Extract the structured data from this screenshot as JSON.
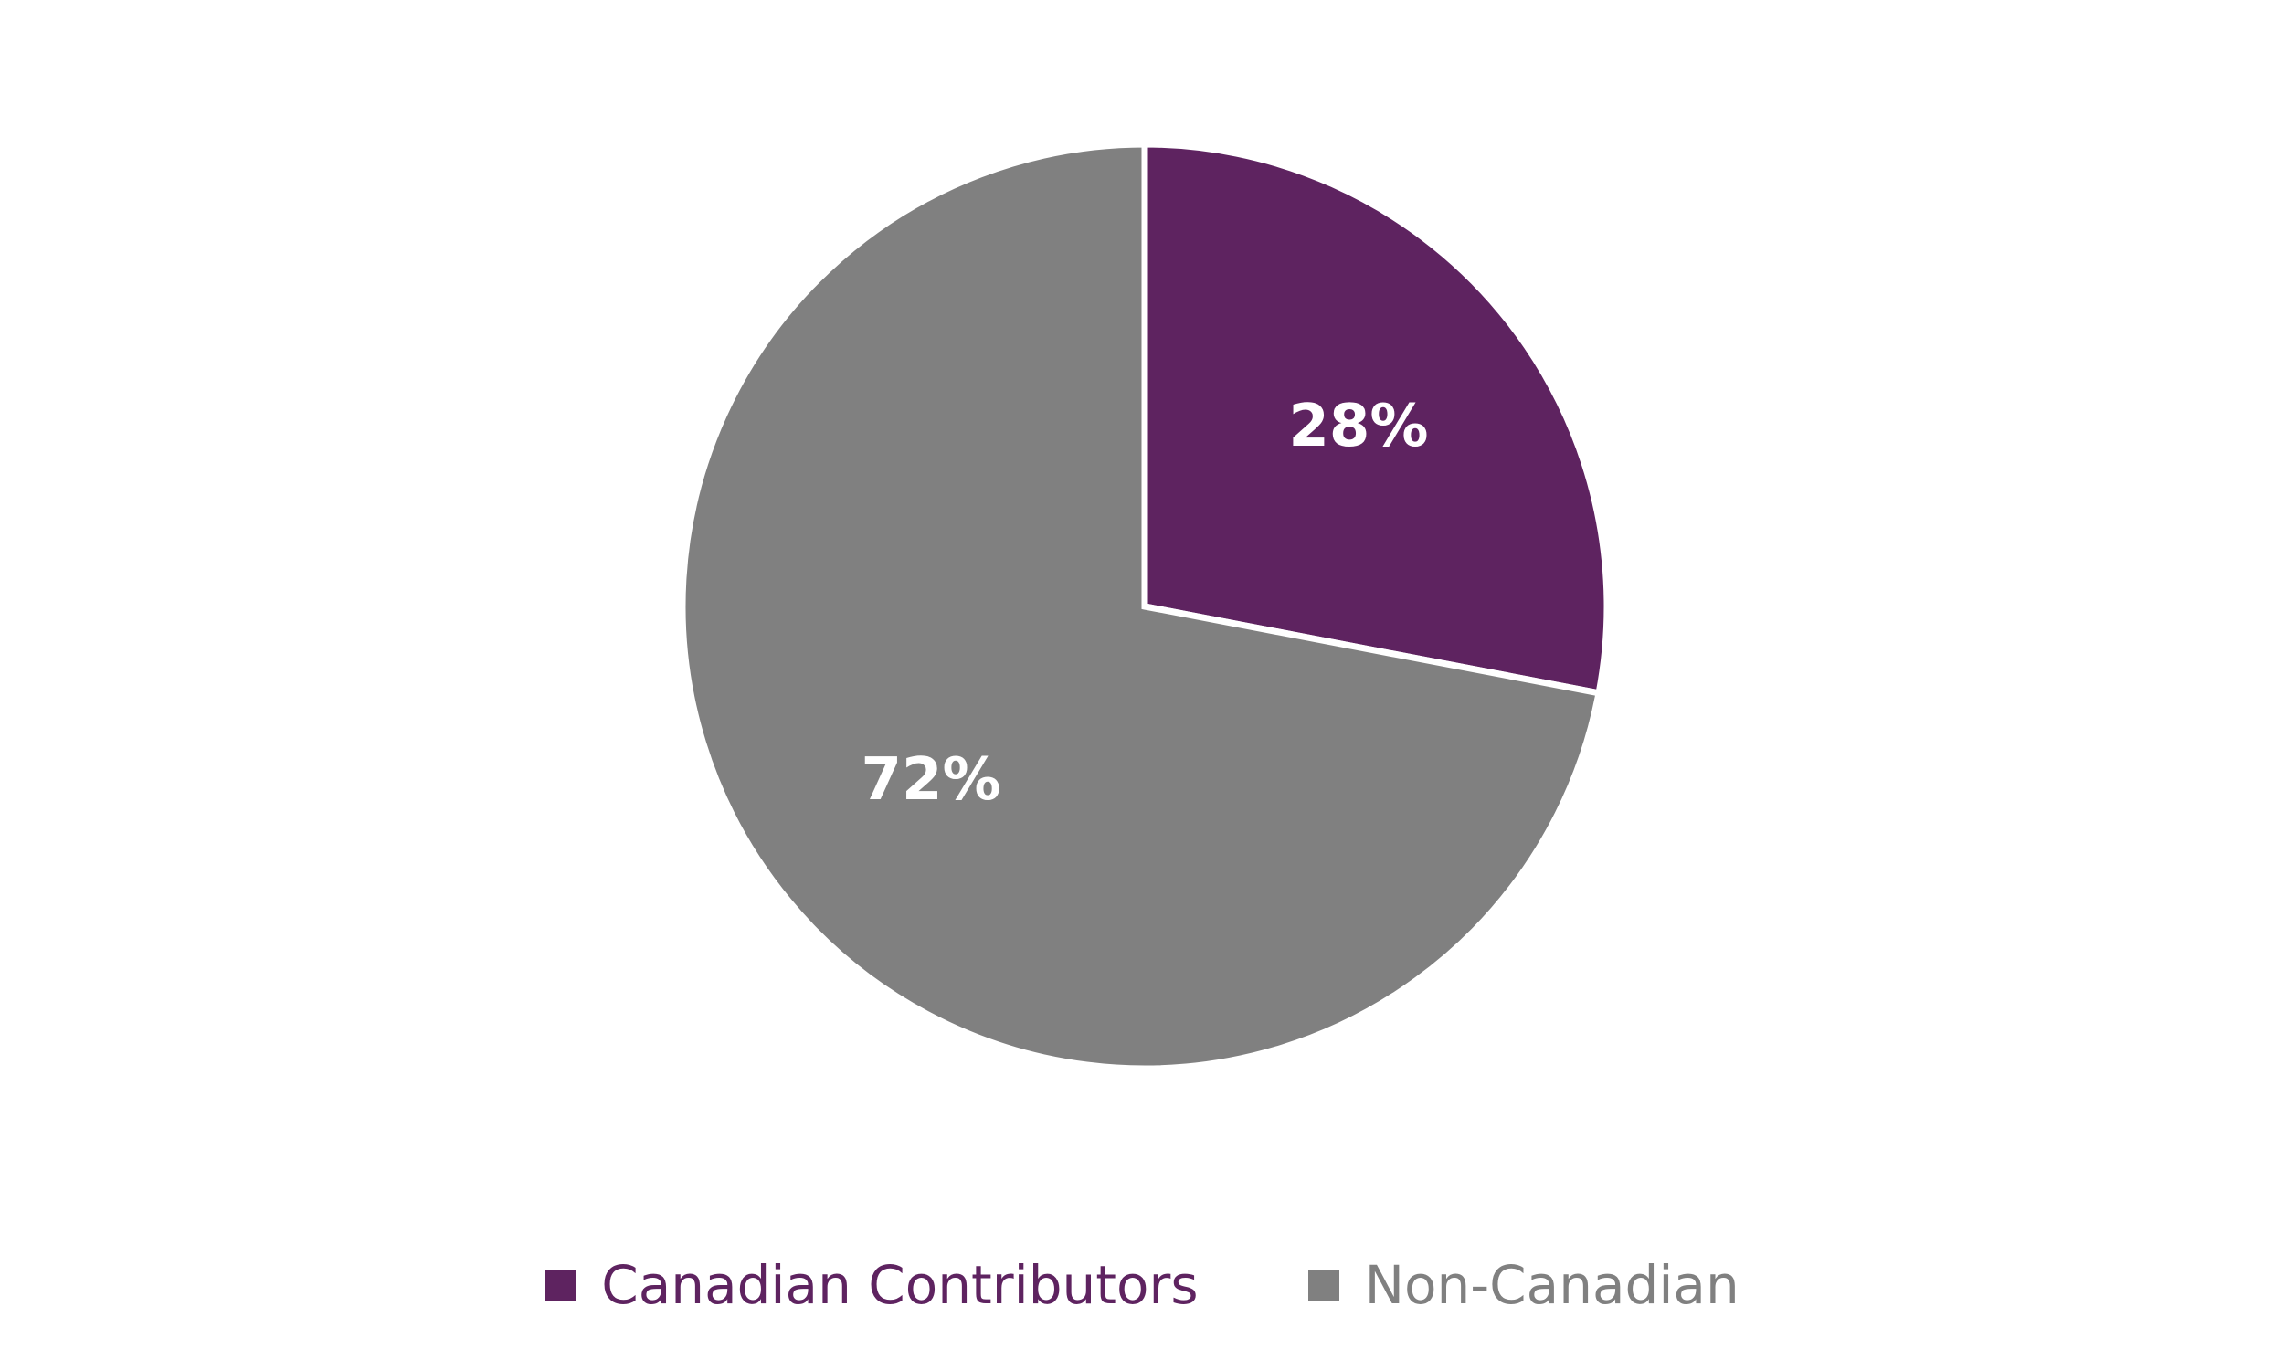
{
  "chart_data": {
    "type": "pie",
    "start_angle_deg": 0,
    "direction": "clockwise",
    "slices": [
      {
        "name": "Canadian Contributors",
        "value": 28,
        "label": "28%",
        "color": "#5e2360"
      },
      {
        "name": "Non-Canadian",
        "value": 72,
        "label": "72%",
        "color": "#808080"
      }
    ],
    "legend_position": "bottom",
    "title": ""
  }
}
